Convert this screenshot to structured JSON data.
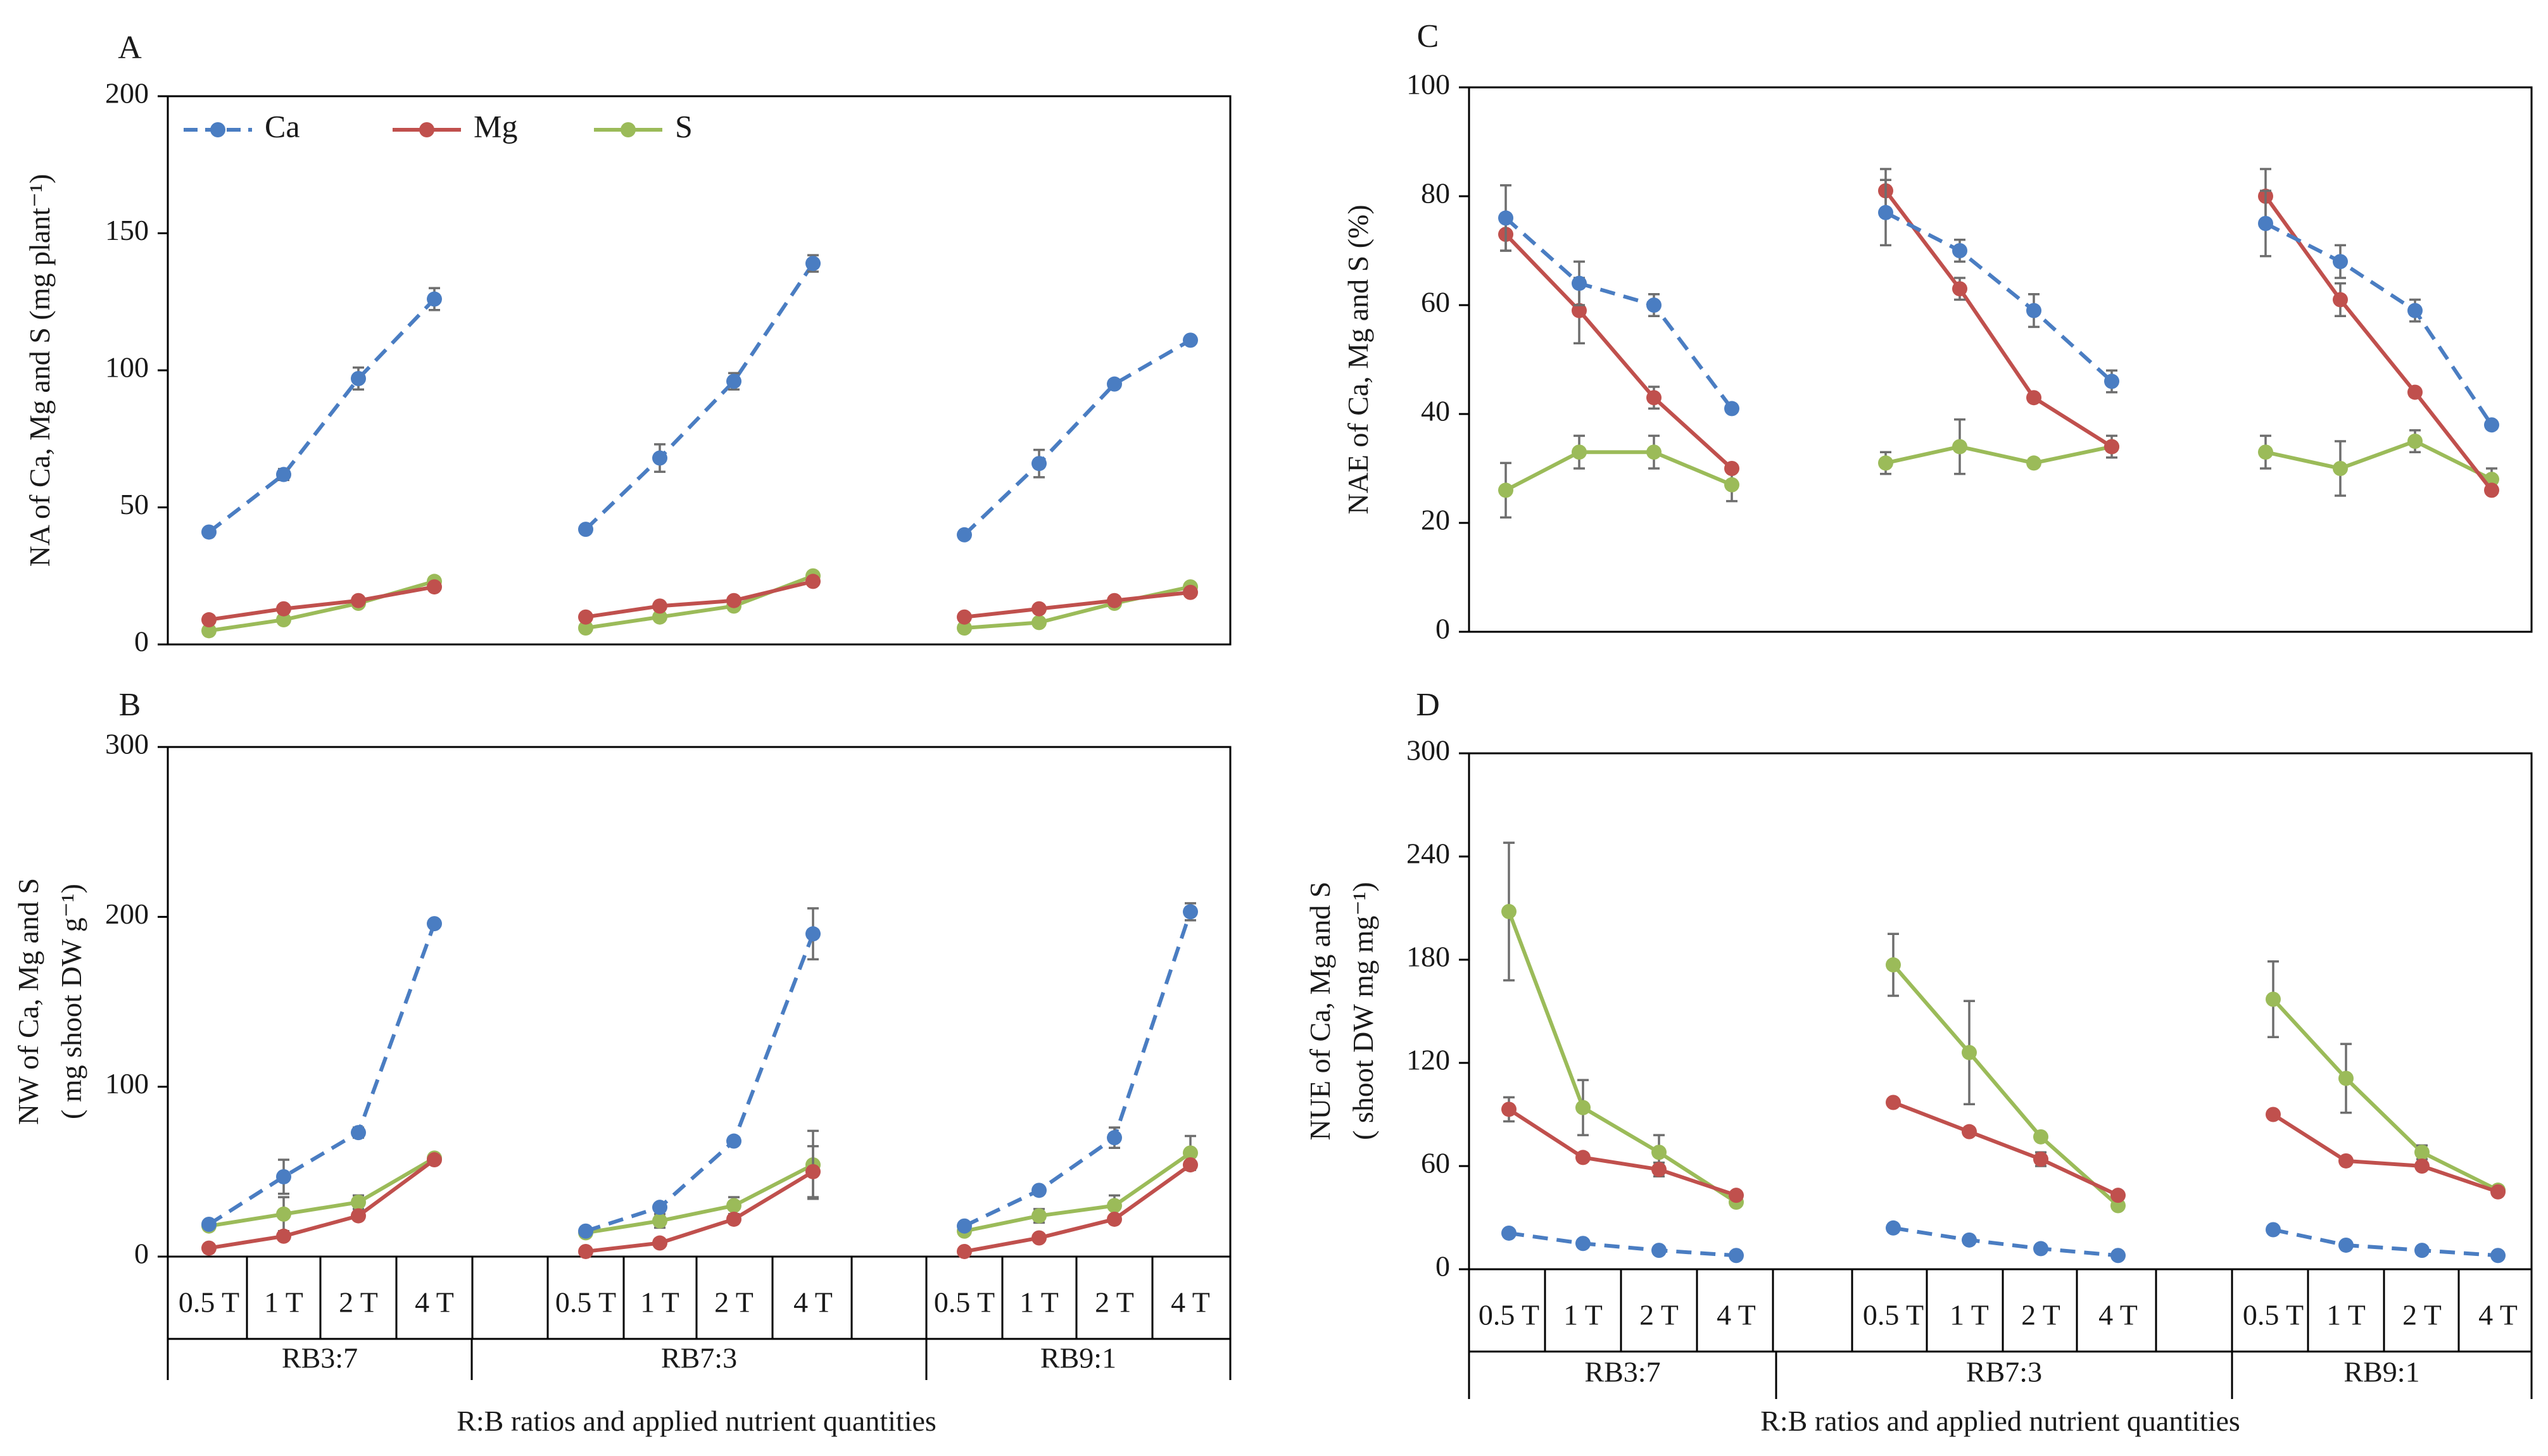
{
  "colors": {
    "Ca": "#4a7dc2",
    "Mg": "#c0504d",
    "S": "#9bbb59"
  },
  "legend": {
    "labels": [
      "Ca",
      "Mg",
      "S"
    ]
  },
  "xlabel": "R:B ratios and  applied nutrient quantities",
  "groups": [
    "RB3:7",
    "RB7:3",
    "RB9:1"
  ],
  "levels": [
    "0.5 T",
    "1 T",
    "2 T",
    "4 T"
  ],
  "chart_data": [
    {
      "panel": "A",
      "type": "line",
      "ylabel": "NA of  Ca, Mg and S (mg plant⁻¹)",
      "ylim": [
        0,
        200
      ],
      "yticks": [
        0,
        50,
        100,
        150,
        200
      ],
      "categories": [
        "RB3:7 0.5 T",
        "RB3:7 1 T",
        "RB3:7 2 T",
        "RB3:7 4 T",
        "RB7:3 0.5 T",
        "RB7:3 1 T",
        "RB7:3 2 T",
        "RB7:3 4 T",
        "RB9:1 0.5 T",
        "RB9:1 1 T",
        "RB9:1 2 T",
        "RB9:1 4 T"
      ],
      "series": [
        {
          "name": "Ca",
          "style": "dashed",
          "values": [
            [
              41,
              62,
              97,
              126
            ],
            [
              42,
              68,
              96,
              139
            ],
            [
              40,
              66,
              95,
              111
            ]
          ],
          "errors": [
            [
              1,
              2,
              4,
              4
            ],
            [
              1,
              5,
              3,
              3
            ],
            [
              1,
              5,
              1,
              1
            ]
          ]
        },
        {
          "name": "Mg",
          "style": "solid",
          "values": [
            [
              9,
              13,
              16,
              21
            ],
            [
              10,
              14,
              16,
              23
            ],
            [
              10,
              13,
              16,
              19
            ]
          ],
          "errors": [
            [
              1,
              1,
              1,
              1
            ],
            [
              1,
              1,
              1,
              1
            ],
            [
              1,
              1,
              1,
              1
            ]
          ]
        },
        {
          "name": "S",
          "style": "solid",
          "values": [
            [
              5,
              9,
              15,
              23
            ],
            [
              6,
              10,
              14,
              25
            ],
            [
              6,
              8,
              15,
              21
            ]
          ],
          "errors": [
            [
              1,
              1,
              1,
              1
            ],
            [
              1,
              1,
              1,
              1
            ],
            [
              1,
              1,
              1,
              1
            ]
          ]
        }
      ]
    },
    {
      "panel": "B",
      "type": "line",
      "ylabel": [
        "NW  of Ca, Mg and S",
        "( mg shoot DW g⁻¹)"
      ],
      "ylim": [
        0,
        300
      ],
      "yticks": [
        0,
        100,
        200,
        300
      ],
      "categories": [
        "RB3:7 0.5 T",
        "RB3:7 1 T",
        "RB3:7 2 T",
        "RB3:7 4 T",
        "RB7:3 0.5 T",
        "RB7:3 1 T",
        "RB7:3 2 T",
        "RB7:3 4 T",
        "RB9:1 0.5 T",
        "RB9:1 1 T",
        "RB9:1 2 T",
        "RB9:1 4 T"
      ],
      "series": [
        {
          "name": "Ca",
          "style": "dashed",
          "values": [
            [
              19,
              47,
              73,
              196
            ],
            [
              15,
              29,
              68,
              190
            ],
            [
              18,
              39,
              70,
              203
            ]
          ],
          "errors": [
            [
              2,
              10,
              3,
              2
            ],
            [
              2,
              2,
              2,
              15
            ],
            [
              2,
              2,
              6,
              5
            ]
          ]
        },
        {
          "name": "Mg",
          "style": "solid",
          "values": [
            [
              5,
              12,
              24,
              57
            ],
            [
              3,
              8,
              22,
              50
            ],
            [
              3,
              11,
              22,
              54
            ]
          ],
          "errors": [
            [
              1,
              1,
              2,
              2
            ],
            [
              1,
              1,
              2,
              15
            ],
            [
              1,
              1,
              2,
              2
            ]
          ]
        },
        {
          "name": "S",
          "style": "solid",
          "values": [
            [
              18,
              25,
              32,
              58
            ],
            [
              14,
              21,
              30,
              54
            ],
            [
              15,
              24,
              30,
              61
            ]
          ],
          "errors": [
            [
              2,
              10,
              4,
              2
            ],
            [
              2,
              4,
              5,
              20
            ],
            [
              2,
              4,
              6,
              10
            ]
          ]
        }
      ]
    },
    {
      "panel": "C",
      "type": "line",
      "ylabel": "NAE of  Ca, Mg and S (%)",
      "ylim": [
        0,
        100
      ],
      "yticks": [
        0,
        20,
        40,
        60,
        80,
        100
      ],
      "categories": [
        "RB3:7 0.5 T",
        "RB3:7 1 T",
        "RB3:7 2 T",
        "RB3:7 4 T",
        "RB7:3 0.5 T",
        "RB7:3 1 T",
        "RB7:3 2 T",
        "RB7:3 4 T",
        "RB9:1 0.5 T",
        "RB9:1 1 T",
        "RB9:1 2 T",
        "RB9:1 4 T"
      ],
      "series": [
        {
          "name": "Ca",
          "style": "dashed",
          "values": [
            [
              76,
              64,
              60,
              41
            ],
            [
              77,
              70,
              59,
              46
            ],
            [
              75,
              68,
              59,
              38
            ]
          ],
          "errors": [
            [
              6,
              4,
              2,
              1
            ],
            [
              6,
              2,
              3,
              2
            ],
            [
              6,
              3,
              2,
              1
            ]
          ]
        },
        {
          "name": "Mg",
          "style": "solid",
          "values": [
            [
              73,
              59,
              43,
              30
            ],
            [
              81,
              63,
              43,
              34
            ],
            [
              80,
              61,
              44,
              26
            ]
          ],
          "errors": [
            [
              3,
              6,
              2,
              1
            ],
            [
              4,
              2,
              1,
              1
            ],
            [
              5,
              3,
              1,
              1
            ]
          ]
        },
        {
          "name": "S",
          "style": "solid",
          "values": [
            [
              26,
              33,
              33,
              27
            ],
            [
              31,
              34,
              31,
              34
            ],
            [
              33,
              30,
              35,
              28
            ]
          ],
          "errors": [
            [
              5,
              3,
              3,
              3
            ],
            [
              2,
              5,
              1,
              2
            ],
            [
              3,
              5,
              2,
              2
            ]
          ]
        }
      ]
    },
    {
      "panel": "D",
      "type": "line",
      "ylabel": [
        "NUE of  Ca, Mg and S",
        "( shoot DW mg mg⁻¹)"
      ],
      "ylim": [
        0,
        300
      ],
      "yticks": [
        0,
        60,
        120,
        180,
        240,
        300
      ],
      "categories": [
        "RB3:7 0.5 T",
        "RB3:7 1 T",
        "RB3:7 2 T",
        "RB3:7 4 T",
        "RB7:3 0.5 T",
        "RB7:3 1 T",
        "RB7:3 2 T",
        "RB7:3 4 T",
        "RB9:1 0.5 T",
        "RB9:1 1 T",
        "RB9:1 2 T",
        "RB9:1 4 T"
      ],
      "series": [
        {
          "name": "Ca",
          "style": "dashed",
          "values": [
            [
              21,
              15,
              11,
              8
            ],
            [
              24,
              17,
              12,
              8
            ],
            [
              23,
              14,
              11,
              8
            ]
          ],
          "errors": [
            [
              1,
              1,
              1,
              1
            ],
            [
              1,
              1,
              1,
              1
            ],
            [
              1,
              1,
              1,
              1
            ]
          ]
        },
        {
          "name": "Mg",
          "style": "solid",
          "values": [
            [
              93,
              65,
              58,
              43
            ],
            [
              97,
              80,
              64,
              43
            ],
            [
              90,
              63,
              60,
              45
            ]
          ],
          "errors": [
            [
              7,
              2,
              4,
              2
            ],
            [
              2,
              2,
              4,
              2
            ],
            [
              2,
              2,
              2,
              2
            ]
          ]
        },
        {
          "name": "S",
          "style": "solid",
          "values": [
            [
              208,
              94,
              68,
              39
            ],
            [
              177,
              126,
              77,
              37
            ],
            [
              157,
              111,
              68,
              46
            ]
          ],
          "errors": [
            [
              40,
              16,
              10,
              2
            ],
            [
              18,
              30,
              2,
              2
            ],
            [
              22,
              20,
              4,
              2
            ]
          ]
        }
      ]
    }
  ]
}
